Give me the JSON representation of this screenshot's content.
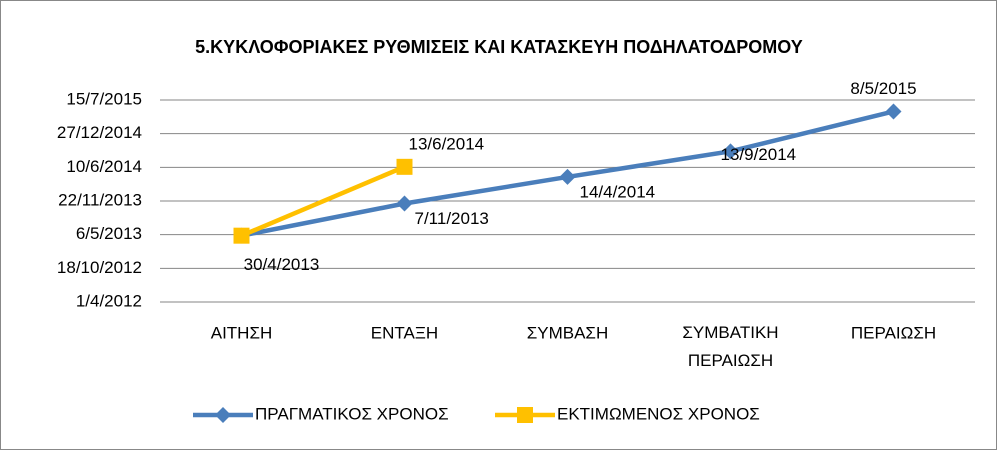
{
  "chart_data": {
    "type": "line",
    "title": "5.ΚΥΚΛΟΦΟΡΙΑΚΕΣ ΡΥΘΜΙΣΕΙΣ ΚΑΙ ΚΑΤΑΣΚΕΥΗ ΠΟΔΗΛΑΤΟΔΡΟΜΟΥ",
    "categories": [
      "ΑΙΤΗΣΗ",
      "ΕΝΤΑΞΗ",
      "ΣΥΜΒΑΣΗ",
      "ΣΥΜΒΑΤΙΚΗ\nΠΕΡΑΙΩΣΗ",
      "ΠΕΡΑΙΩΣΗ"
    ],
    "series": [
      {
        "name": "ΠΡΑΓΜΑΤΙΚΟΣ ΧΡΟΝΟΣ",
        "color": "#4a7ebb",
        "marker": "diamond",
        "values": [
          41394,
          41585,
          41743,
          41895,
          42132
        ],
        "value_labels": [
          "30/4/2013",
          "7/11/2013",
          "14/4/2014",
          "13/9/2014",
          "8/5/2015"
        ]
      },
      {
        "name": "ΕΚΤΙΜΩΜΕΝΟΣ ΧΡΟΝΟΣ",
        "color": "#ffc000",
        "marker": "square",
        "values": [
          41394,
          41803,
          null,
          null,
          null
        ],
        "value_labels": [
          null,
          "13/6/2014",
          null,
          null,
          null
        ]
      }
    ],
    "ylim": [
      41000,
      42200
    ],
    "yticks": [
      {
        "value": 41000,
        "label": "1/4/2012"
      },
      {
        "value": 41200,
        "label": "18/10/2012"
      },
      {
        "value": 41400,
        "label": "6/5/2013"
      },
      {
        "value": 41600,
        "label": "22/11/2013"
      },
      {
        "value": 41800,
        "label": "10/6/2014"
      },
      {
        "value": 42000,
        "label": "27/12/2014"
      },
      {
        "value": 42200,
        "label": "15/7/2015"
      }
    ],
    "grid": true,
    "legend": "bottom"
  }
}
